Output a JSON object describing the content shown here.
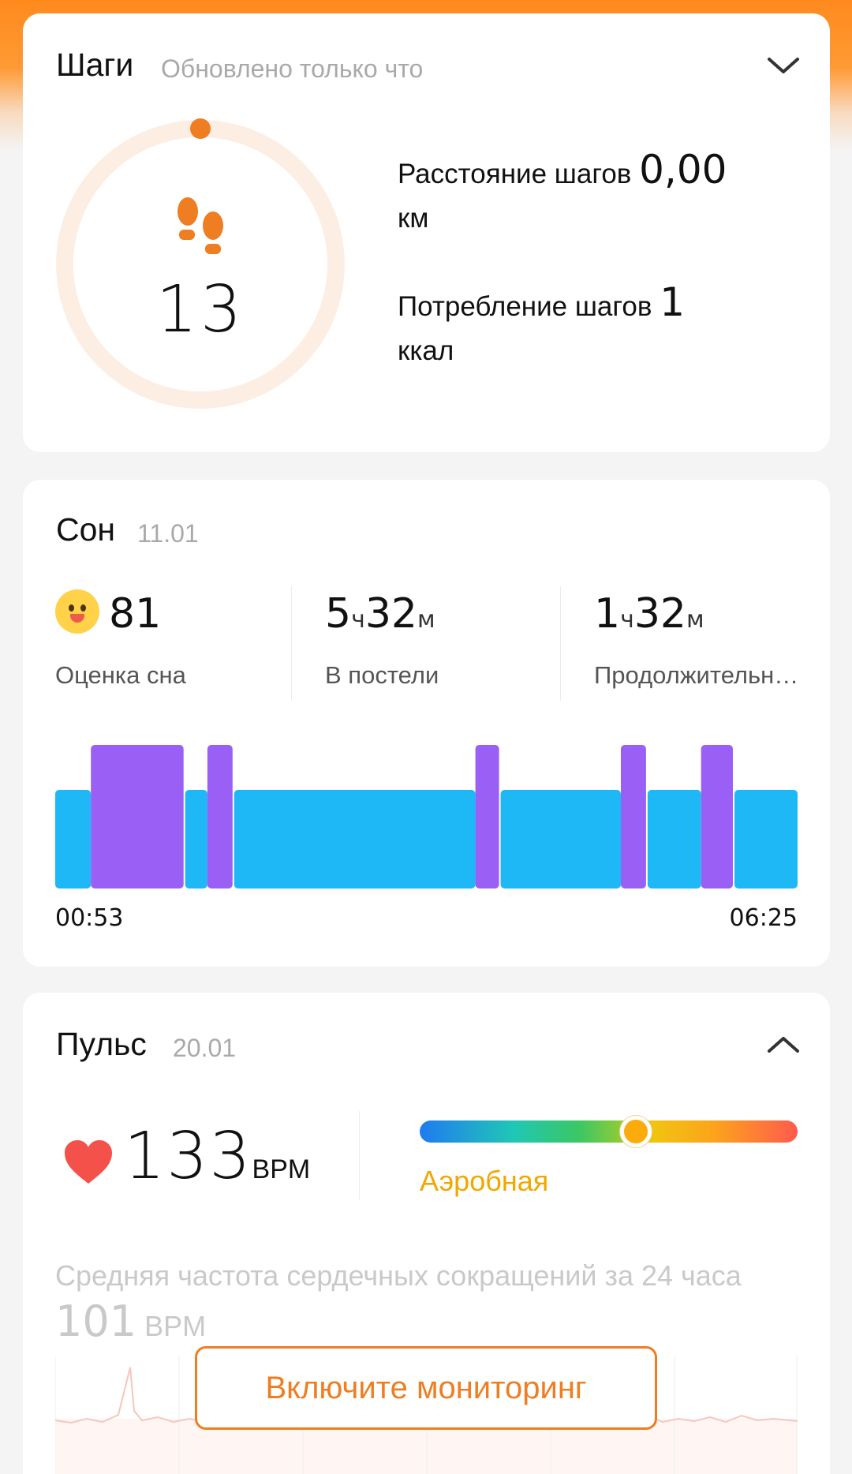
{
  "colors": {
    "accent": "#ef7d21",
    "light_blue": "#1db8f5",
    "purple": "#9a5ff5",
    "zone_label": "#f0a800"
  },
  "steps": {
    "title": "Шаги",
    "subtitle": "Обновлено только что",
    "count": "13",
    "distance_label": "Расстояние шагов",
    "distance_value": "0,00",
    "distance_unit": "км",
    "calories_label": "Потребление шагов",
    "calories_value": "1",
    "calories_unit": "ккал",
    "icons": [
      "footprints-icon",
      "chevron-down-icon"
    ]
  },
  "sleep": {
    "title": "Сон",
    "date": "11.01",
    "score_value": "81",
    "score_label": "Оценка сна",
    "in_bed_h": "5",
    "in_bed_m": "32",
    "in_bed_label": "В постели",
    "duration_h": "1",
    "duration_m": "32",
    "duration_label": "Продолжительность",
    "unit_h": "ч",
    "unit_m": "м",
    "start_time": "00:53",
    "end_time": "06:25",
    "stages": [
      {
        "stage": "light",
        "from": 0.0,
        "to": 0.048
      },
      {
        "stage": "deep",
        "from": 0.048,
        "to": 0.175
      },
      {
        "stage": "light",
        "from": 0.175,
        "to": 0.205
      },
      {
        "stage": "deep",
        "from": 0.205,
        "to": 0.241
      },
      {
        "stage": "light",
        "from": 0.241,
        "to": 0.566
      },
      {
        "stage": "deep",
        "from": 0.566,
        "to": 0.6
      },
      {
        "stage": "light",
        "from": 0.6,
        "to": 0.762
      },
      {
        "stage": "deep",
        "from": 0.762,
        "to": 0.798
      },
      {
        "stage": "light",
        "from": 0.798,
        "to": 0.87
      },
      {
        "stage": "deep",
        "from": 0.87,
        "to": 0.915
      },
      {
        "stage": "light",
        "from": 0.915,
        "to": 1.0
      }
    ]
  },
  "pulse": {
    "title": "Пульс",
    "date": "20.01",
    "bpm_value": "133",
    "bpm_unit": "BPM",
    "zone_label": "Аэробная",
    "zone_position": 0.573,
    "avg_text_prefix": "Средняя частота сердечных сокращений за 24 часа",
    "avg_value": "101",
    "avg_unit": "BPM",
    "monitor_button": "Включите мониторинг",
    "icons": [
      "heart-icon",
      "chevron-up-icon"
    ]
  }
}
